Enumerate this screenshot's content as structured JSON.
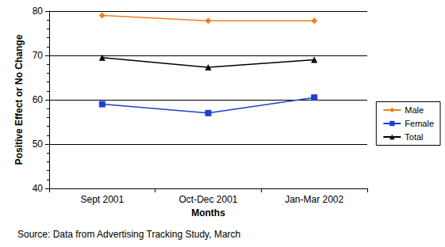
{
  "chart_data": {
    "type": "line",
    "x_label": "Months",
    "y_label": "Positive Effect or No Change",
    "annotations": [
      "Source: Data from Advertising Tracking Study, March"
    ],
    "categories": [
      "Sept 2001",
      "Oct-Dec 2001",
      "Jan-Mar 2002"
    ],
    "series": [
      {
        "name": "Male",
        "color": "#f07f1e",
        "marker": "diamond",
        "values": [
          79,
          77.8,
          77.8
        ]
      },
      {
        "name": "Female",
        "color": "#1f3fd0",
        "marker": "square",
        "values": [
          59,
          57,
          60.5
        ]
      },
      {
        "name": "Total",
        "color": "#000000",
        "marker": "triangle",
        "values": [
          69.5,
          67.3,
          69
        ]
      }
    ],
    "ylim": [
      40,
      80
    ],
    "yticks": [
      40,
      50,
      60,
      70,
      80
    ],
    "grid": true,
    "legend": "right"
  }
}
